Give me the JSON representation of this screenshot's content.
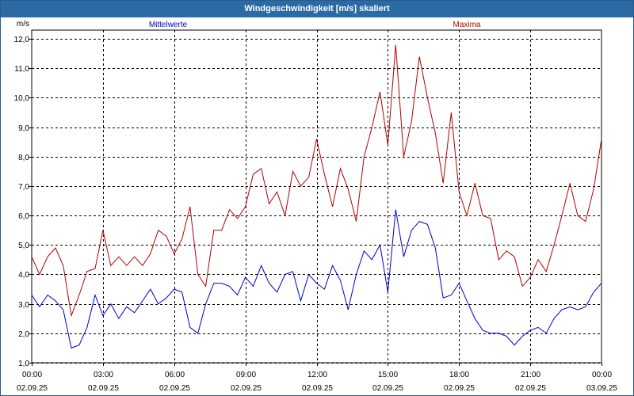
{
  "window": {
    "title": "Windgeschwindigkeit [m/s] skaliert"
  },
  "chart_data": {
    "type": "line",
    "title": "Windgeschwindigkeit [m/s] skaliert",
    "ylabel": "m/s",
    "xlabel": "",
    "ylim": [
      1.0,
      12.3
    ],
    "xlim_hours": [
      0,
      24
    ],
    "yticks": [
      1.0,
      2.0,
      3.0,
      4.0,
      5.0,
      6.0,
      7.0,
      8.0,
      9.0,
      10.0,
      11.0,
      12.0
    ],
    "ytick_labels": [
      "1,0",
      "2,0",
      "3,0",
      "4,0",
      "5,0",
      "6,0",
      "7,0",
      "8,0",
      "9,0",
      "10,0",
      "11,0",
      "12,0"
    ],
    "xticks": [
      {
        "hour": 0,
        "time": "00:00",
        "date": "02.09.25"
      },
      {
        "hour": 3,
        "time": "03:00",
        "date": "02.09.25"
      },
      {
        "hour": 6,
        "time": "06:00",
        "date": "02.09.25"
      },
      {
        "hour": 9,
        "time": "09:00",
        "date": "02.09.25"
      },
      {
        "hour": 12,
        "time": "12:00",
        "date": "02.09.25"
      },
      {
        "hour": 15,
        "time": "15:00",
        "date": "02.09.25"
      },
      {
        "hour": 18,
        "time": "18:00",
        "date": "02.09.25"
      },
      {
        "hour": 21,
        "time": "21:00",
        "date": "02.09.25"
      },
      {
        "hour": 24,
        "time": "00:00",
        "date": "03.09.25"
      }
    ],
    "grid": true,
    "series": [
      {
        "name": "Mittelwerte",
        "color": "#0000c0",
        "x": [
          0,
          0.33,
          0.67,
          1,
          1.33,
          1.67,
          2,
          2.33,
          2.67,
          3,
          3.33,
          3.67,
          4,
          4.33,
          4.67,
          5,
          5.33,
          5.67,
          6,
          6.33,
          6.67,
          7,
          7.33,
          7.67,
          8,
          8.33,
          8.67,
          9,
          9.33,
          9.67,
          10,
          10.33,
          10.67,
          11,
          11.33,
          11.67,
          12,
          12.33,
          12.67,
          13,
          13.33,
          13.67,
          14,
          14.33,
          14.67,
          15,
          15.33,
          15.67,
          16,
          16.33,
          16.67,
          17,
          17.33,
          17.67,
          18,
          18.33,
          18.67,
          19,
          19.33,
          19.67,
          20,
          20.33,
          20.67,
          21,
          21.33,
          21.67,
          22,
          22.33,
          22.67,
          23,
          23.33,
          23.67,
          24
        ],
        "values": [
          3.3,
          2.9,
          3.3,
          3.1,
          2.8,
          1.5,
          1.6,
          2.2,
          3.3,
          2.6,
          3.0,
          2.5,
          2.9,
          2.7,
          3.1,
          3.5,
          3.0,
          3.2,
          3.5,
          3.4,
          2.2,
          2.0,
          3.0,
          3.7,
          3.7,
          3.6,
          3.3,
          3.9,
          3.6,
          4.3,
          3.7,
          3.4,
          4.0,
          4.1,
          3.1,
          4.0,
          3.7,
          3.5,
          4.3,
          3.8,
          2.8,
          4.0,
          4.8,
          4.5,
          5.0,
          3.4,
          6.2,
          4.6,
          5.5,
          5.8,
          5.7,
          4.9,
          3.2,
          3.3,
          3.7,
          3.1,
          2.5,
          2.1,
          2.0,
          2.0,
          1.9,
          1.6,
          1.9,
          2.1,
          2.2,
          2.0,
          2.5,
          2.8,
          2.9,
          2.8,
          2.9,
          3.4,
          3.7
        ]
      },
      {
        "name": "Maxima",
        "color": "#b00000",
        "x": [
          0,
          0.33,
          0.67,
          1,
          1.33,
          1.67,
          2,
          2.33,
          2.67,
          3,
          3.33,
          3.67,
          4,
          4.33,
          4.67,
          5,
          5.33,
          5.67,
          6,
          6.33,
          6.67,
          7,
          7.33,
          7.67,
          8,
          8.33,
          8.67,
          9,
          9.33,
          9.67,
          10,
          10.33,
          10.67,
          11,
          11.33,
          11.67,
          12,
          12.33,
          12.67,
          13,
          13.33,
          13.67,
          14,
          14.33,
          14.67,
          15,
          15.33,
          15.67,
          16,
          16.33,
          16.67,
          17,
          17.33,
          17.67,
          18,
          18.33,
          18.67,
          19,
          19.33,
          19.67,
          20,
          20.33,
          20.67,
          21,
          21.33,
          21.67,
          22,
          22.33,
          22.67,
          23,
          23.33,
          23.67,
          24
        ],
        "values": [
          4.6,
          4.0,
          4.6,
          4.9,
          4.3,
          2.6,
          3.3,
          4.1,
          4.2,
          5.5,
          4.3,
          4.6,
          4.3,
          4.6,
          4.3,
          4.7,
          5.5,
          5.3,
          4.7,
          5.2,
          6.3,
          4.0,
          3.6,
          5.5,
          5.5,
          6.2,
          5.9,
          6.3,
          7.4,
          7.6,
          6.4,
          6.8,
          6.0,
          7.5,
          7.0,
          7.3,
          8.6,
          7.4,
          6.3,
          7.6,
          6.9,
          5.8,
          8.0,
          9.0,
          10.2,
          8.4,
          11.8,
          8.0,
          9.2,
          11.4,
          10.0,
          8.8,
          7.1,
          9.5,
          6.8,
          6.0,
          7.1,
          6.0,
          5.9,
          4.5,
          4.8,
          4.6,
          3.6,
          3.9,
          4.5,
          4.1,
          5.0,
          6.0,
          7.1,
          6.0,
          5.8,
          6.9,
          8.6
        ]
      }
    ]
  }
}
